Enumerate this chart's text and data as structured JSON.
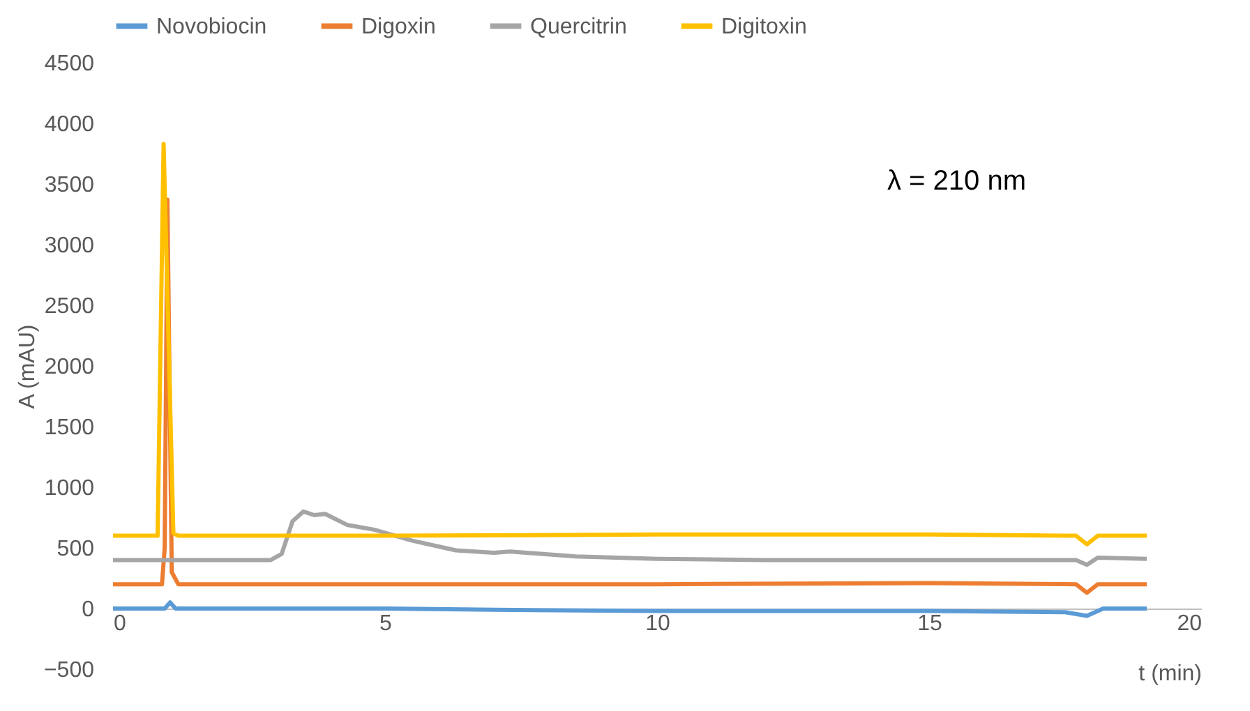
{
  "chart_data": {
    "type": "line",
    "xlabel": "t (min)",
    "ylabel": "A (mAU)",
    "xlim": [
      0,
      20
    ],
    "xticks": [
      0,
      5,
      10,
      15,
      20
    ],
    "ylim": [
      -500,
      4500
    ],
    "yticks": [
      -500,
      0,
      500,
      1000,
      1500,
      2000,
      2500,
      3000,
      3500,
      4000,
      4500
    ],
    "grid": false,
    "legend": "top",
    "line_style": "solid",
    "marker": "none",
    "annotations": [
      "λ = 210 nm"
    ],
    "series": [
      {
        "name": "Novobiocin",
        "color": "#5b9bd5",
        "x": [
          0,
          0.95,
          1.05,
          1.15,
          3,
          5,
          7,
          10,
          15,
          17.5,
          17.9,
          18.2,
          19
        ],
        "values": [
          0,
          0,
          50,
          0,
          0,
          0,
          -10,
          -20,
          -20,
          -30,
          -60,
          0,
          0
        ]
      },
      {
        "name": "Digoxin",
        "color": "#ed7d31",
        "x": [
          0,
          0.9,
          0.95,
          1.0,
          1.08,
          1.2,
          5,
          10,
          15,
          17.7,
          17.9,
          18.1,
          19
        ],
        "values": [
          200,
          200,
          500,
          3370,
          300,
          200,
          200,
          200,
          210,
          200,
          130,
          200,
          200
        ]
      },
      {
        "name": "Quercitrin",
        "color": "#a5a5a5",
        "x": [
          0,
          2.9,
          3.1,
          3.3,
          3.5,
          3.7,
          3.9,
          4.3,
          4.8,
          5.5,
          6.3,
          7,
          7.3,
          8.5,
          10,
          12,
          15,
          17.7,
          17.9,
          18.1,
          19
        ],
        "values": [
          400,
          400,
          450,
          720,
          800,
          770,
          780,
          690,
          650,
          560,
          480,
          460,
          470,
          430,
          410,
          400,
          400,
          400,
          360,
          420,
          410
        ]
      },
      {
        "name": "Digitoxin",
        "color": "#ffc000",
        "x": [
          0,
          0.82,
          0.93,
          1.11,
          1.2,
          5,
          10,
          15,
          17.7,
          17.9,
          18.1,
          19
        ],
        "values": [
          600,
          600,
          3830,
          620,
          600,
          600,
          610,
          610,
          600,
          530,
          600,
          600
        ]
      }
    ]
  }
}
